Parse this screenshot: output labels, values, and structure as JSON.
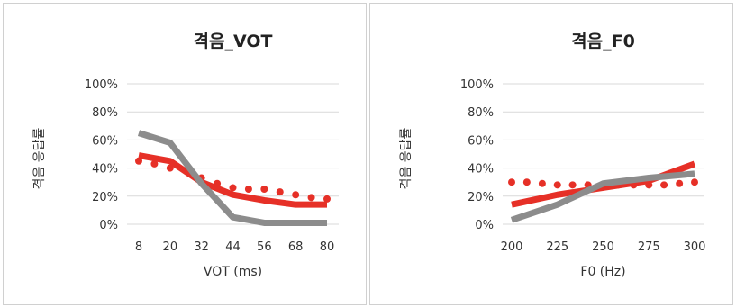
{
  "chart_data": [
    {
      "type": "line",
      "title": "격음_VOT",
      "xlabel": "VOT (ms)",
      "ylabel": "격음 응답률",
      "x": [
        8,
        20,
        32,
        44,
        56,
        68,
        80
      ],
      "xticks": [
        "8",
        "20",
        "32",
        "44",
        "56",
        "68",
        "80"
      ],
      "ylim": [
        0,
        1
      ],
      "yticks": [
        "0%",
        "20%",
        "40%",
        "60%",
        "80%",
        "100%"
      ],
      "grid": true,
      "series": [
        {
          "color": "#e63027",
          "style": "dotted",
          "x": [
            8,
            14,
            20,
            26,
            32,
            38,
            44,
            50,
            56,
            62,
            68,
            74,
            80
          ],
          "values": [
            0.45,
            0.43,
            0.4,
            0.38,
            0.33,
            0.29,
            0.26,
            0.25,
            0.25,
            0.23,
            0.21,
            0.19,
            0.18
          ]
        },
        {
          "color": "#e63027",
          "style": "solid",
          "x": [
            8,
            20,
            32,
            44,
            56,
            68,
            80
          ],
          "values": [
            0.49,
            0.45,
            0.3,
            0.21,
            0.17,
            0.14,
            0.14
          ]
        },
        {
          "color": "#8c8c8c",
          "style": "solid",
          "x": [
            8,
            20,
            32,
            44,
            56,
            68,
            80
          ],
          "values": [
            0.65,
            0.58,
            0.29,
            0.05,
            0.01,
            0.01,
            0.01
          ]
        }
      ]
    },
    {
      "type": "line",
      "title": "격음_F0",
      "xlabel": "F0 (Hz)",
      "ylabel": "격음 응답률",
      "x": [
        200,
        225,
        250,
        275,
        300
      ],
      "xticks": [
        "200",
        "225",
        "250",
        "275",
        "300"
      ],
      "ylim": [
        0,
        1
      ],
      "yticks": [
        "0%",
        "20%",
        "40%",
        "60%",
        "80%",
        "100%"
      ],
      "grid": true,
      "series": [
        {
          "color": "#e63027",
          "style": "dotted",
          "x": [
            200,
            208.3,
            216.7,
            225,
            233.3,
            241.7,
            250,
            258.3,
            266.7,
            275,
            283.3,
            291.7,
            300
          ],
          "values": [
            0.3,
            0.3,
            0.29,
            0.28,
            0.28,
            0.28,
            0.28,
            0.28,
            0.28,
            0.28,
            0.28,
            0.29,
            0.3
          ]
        },
        {
          "color": "#e63027",
          "style": "solid",
          "x": [
            200,
            225,
            250,
            275,
            300
          ],
          "values": [
            0.14,
            0.21,
            0.26,
            0.31,
            0.43
          ]
        },
        {
          "color": "#8c8c8c",
          "style": "solid",
          "x": [
            200,
            225,
            250,
            275,
            300
          ],
          "values": [
            0.03,
            0.14,
            0.29,
            0.33,
            0.36
          ]
        }
      ]
    }
  ]
}
